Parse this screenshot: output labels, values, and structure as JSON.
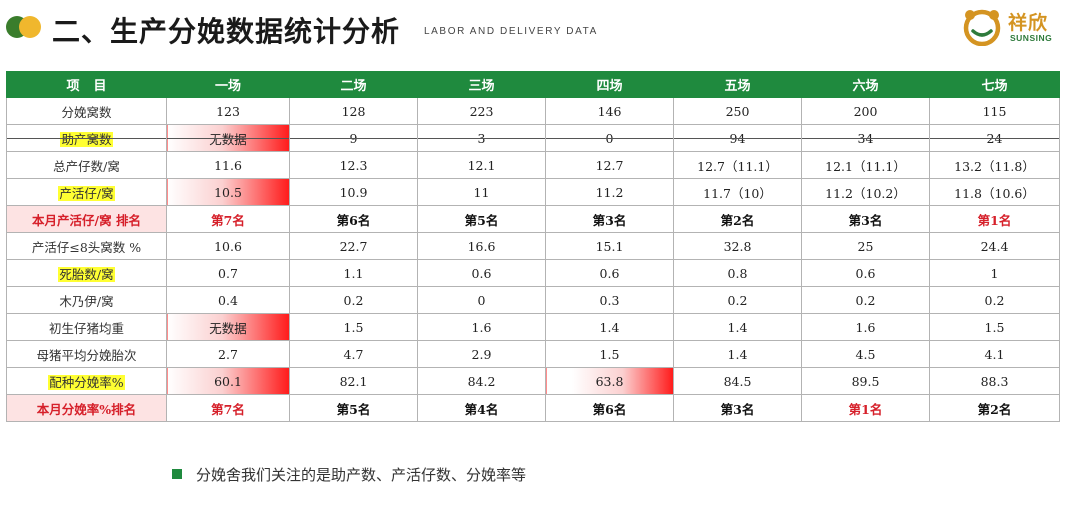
{
  "header": {
    "title": "二、生产分娩数据统计分析",
    "subtitle": "LABOR AND DELIVERY DATA",
    "logo_cn": "祥欣",
    "logo_en": "SUNSING"
  },
  "table": {
    "corner_label": "项目",
    "columns": [
      "一场",
      "二场",
      "三场",
      "四场",
      "五场",
      "六场",
      "七场"
    ],
    "rows": [
      {
        "label": "分娩窝数",
        "values": [
          "123",
          "128",
          "223",
          "146",
          "250",
          "200",
          "115"
        ]
      },
      {
        "label": "助产窝数",
        "values": [
          "无数据",
          "9",
          "3",
          "0",
          "94",
          "34",
          "24"
        ]
      },
      {
        "label": "总产仔数/窝",
        "values": [
          "11.6",
          "12.3",
          "12.1",
          "12.7",
          "12.7（11.1）",
          "12.1（11.1）",
          "13.2（11.8）"
        ]
      },
      {
        "label": "产活仔/窝",
        "values": [
          "10.5",
          "10.9",
          "11",
          "11.2",
          "11.7（10）",
          "11.2（10.2）",
          "11.8（10.6）"
        ]
      },
      {
        "label": "本月产活仔/窝 排名",
        "values": [
          "第7名",
          "第6名",
          "第5名",
          "第3名",
          "第2名",
          "第3名",
          "第1名"
        ]
      },
      {
        "label": "产活仔≤8头窝数 %",
        "values": [
          "10.6",
          "22.7",
          "16.6",
          "15.1",
          "32.8",
          "25",
          "24.4"
        ]
      },
      {
        "label": "死胎数/窝",
        "values": [
          "0.7",
          "1.1",
          "0.6",
          "0.6",
          "0.8",
          "0.6",
          "1"
        ]
      },
      {
        "label": "木乃伊/窝",
        "values": [
          "0.4",
          "0.2",
          "0",
          "0.3",
          "0.2",
          "0.2",
          "0.2"
        ]
      },
      {
        "label": "初生仔猪均重",
        "values": [
          "无数据",
          "1.5",
          "1.6",
          "1.4",
          "1.4",
          "1.6",
          "1.5"
        ]
      },
      {
        "label": "母猪平均分娩胎次",
        "values": [
          "2.7",
          "4.7",
          "2.9",
          "1.5",
          "1.4",
          "4.5",
          "4.1"
        ]
      },
      {
        "label": "配种分娩率%",
        "values": [
          "60.1",
          "82.1",
          "84.2",
          "63.8",
          "84.5",
          "89.5",
          "88.3"
        ]
      },
      {
        "label": "本月分娩率%排名",
        "values": [
          "第7名",
          "第5名",
          "第4名",
          "第6名",
          "第3名",
          "第1名",
          "第2名"
        ]
      }
    ]
  },
  "note": "分娩舍我们关注的是助产数、产活仔数、分娩率等",
  "colors": {
    "header_green": "#1f8a3e",
    "rank_red": "#d6202a",
    "highlight_yellow": "#ffff33",
    "alert_red": "#ff1a1a"
  }
}
